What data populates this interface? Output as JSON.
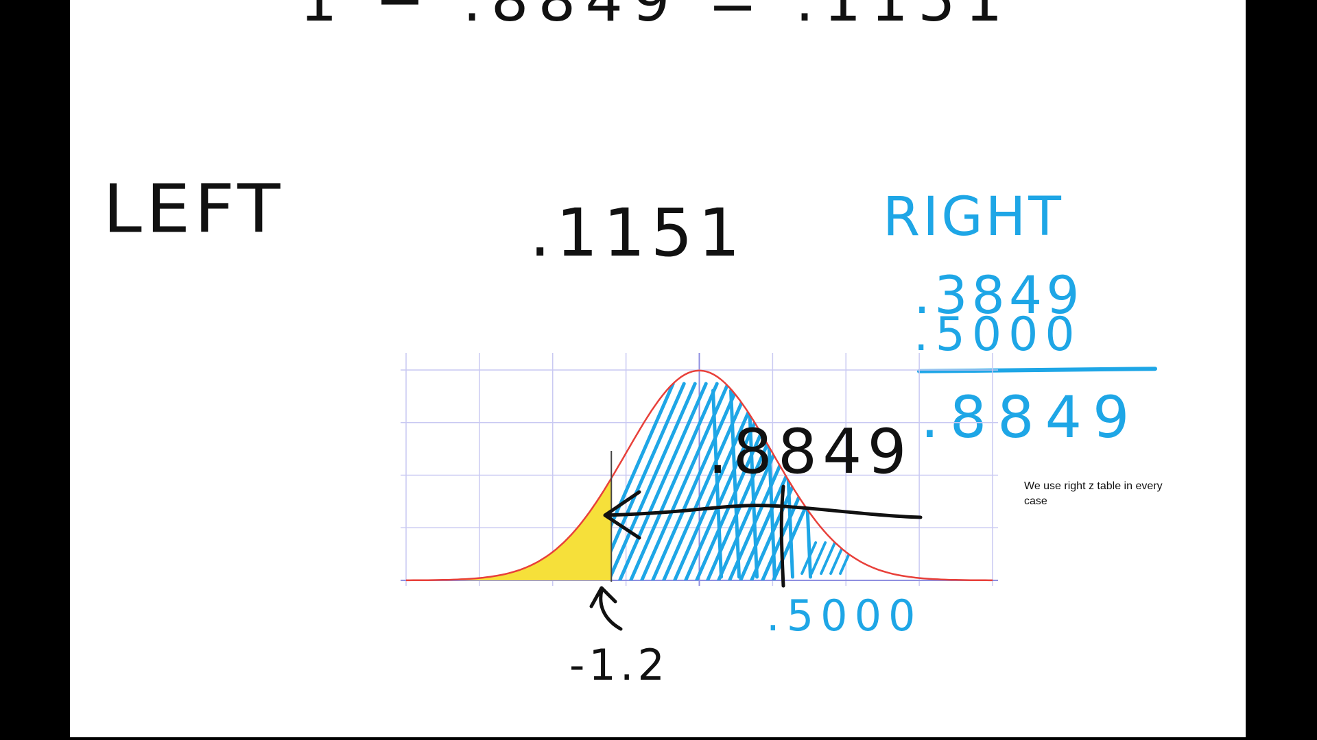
{
  "board": {
    "top_equation": "1 − .8849 = .1151",
    "left_heading": "LEFT",
    "middle_value": ".1151",
    "right_heading": "RIGHT",
    "sum": {
      "addend_1": ".3849",
      "addend_2": ".5000",
      "result": ".8849"
    },
    "note": "We use right z table in every case"
  },
  "graph": {
    "area_label": ".8849",
    "half_label": ".5000",
    "z_label": "-1.2",
    "z_value": -1.2,
    "x_range": [
      -4,
      4
    ],
    "y_range": [
      0,
      0.4
    ],
    "colors": {
      "curve": "#e8403a",
      "left_tail_fill": "#f6e03a",
      "hatch": "#1ea6e6",
      "grid": "#c9c9f2",
      "ink": "#111111"
    }
  }
}
